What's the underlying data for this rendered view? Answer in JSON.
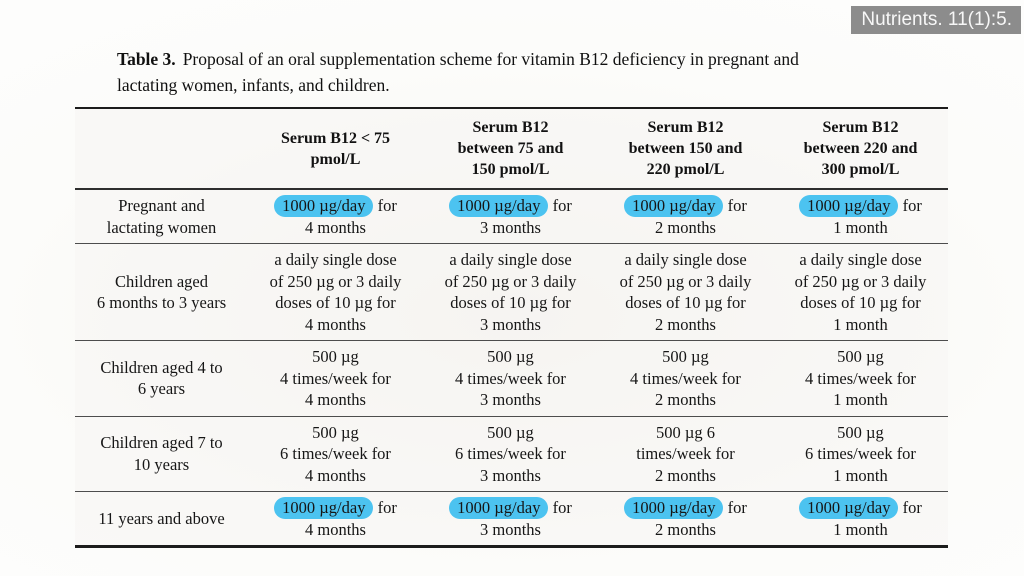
{
  "badge": {
    "text": "Nutrients. 11(1):5."
  },
  "caption": {
    "prefix": "Table 3.",
    "text": "Proposal of an oral supplementation scheme for vitamin B12 deficiency in pregnant and\nlactating women, infants, and children."
  },
  "colors": {
    "highlight": "#4cc3f0",
    "badge_bg": "#8c8c8c"
  },
  "table": {
    "headers": [
      "",
      "Serum B12 < 75\npmol/L",
      "Serum B12\nbetween 75 and\n150 pmol/L",
      "Serum B12\nbetween 150 and\n220 pmol/L",
      "Serum B12\nbetween 220 and\n300 pmol/L"
    ],
    "rows": [
      {
        "label": "Pregnant and\nlactating women",
        "cells": [
          {
            "hl": "1000 µg/day",
            "post": " for\n4 months"
          },
          {
            "hl": "1000 µg/day",
            "post": " for\n3 months"
          },
          {
            "hl": "1000 µg/day",
            "post": " for\n2 months"
          },
          {
            "hl": "1000 µg/day",
            "post": " for\n1 month"
          }
        ]
      },
      {
        "label": "Children aged\n6 months to 3 years",
        "cells": [
          {
            "text": "a daily single dose\nof 250 µg or 3 daily\ndoses of 10 µg for\n4 months"
          },
          {
            "text": "a daily single dose\nof 250 µg or 3 daily\ndoses of 10 µg for\n3 months"
          },
          {
            "text": "a daily single dose\nof 250 µg or 3 daily\ndoses of 10 µg for\n2 months"
          },
          {
            "text": "a daily single dose\nof 250 µg or 3 daily\ndoses of 10 µg for\n1 month"
          }
        ]
      },
      {
        "label": "Children aged 4 to\n6 years",
        "cells": [
          {
            "text": "500 µg\n4 times/week for\n4 months"
          },
          {
            "text": "500 µg\n4 times/week for\n3 months"
          },
          {
            "text": "500 µg\n4 times/week for\n2 months"
          },
          {
            "text": "500 µg\n4 times/week for\n1 month"
          }
        ]
      },
      {
        "label": "Children aged 7 to\n10 years",
        "cells": [
          {
            "text": "500 µg\n6 times/week for\n4 months"
          },
          {
            "text": "500 µg\n6 times/week for\n3 months"
          },
          {
            "text": "500 µg 6\ntimes/week for\n2 months"
          },
          {
            "text": "500 µg\n6 times/week for\n1 month"
          }
        ]
      },
      {
        "label": "11 years and above",
        "cells": [
          {
            "hl": "1000 µg/day",
            "post": " for\n4 months"
          },
          {
            "hl": "1000 µg/day",
            "post": " for\n3 months"
          },
          {
            "hl": "1000 µg/day",
            "post": " for\n2 months"
          },
          {
            "hl": "1000 µg/day",
            "post": " for\n1 month"
          }
        ]
      }
    ]
  }
}
